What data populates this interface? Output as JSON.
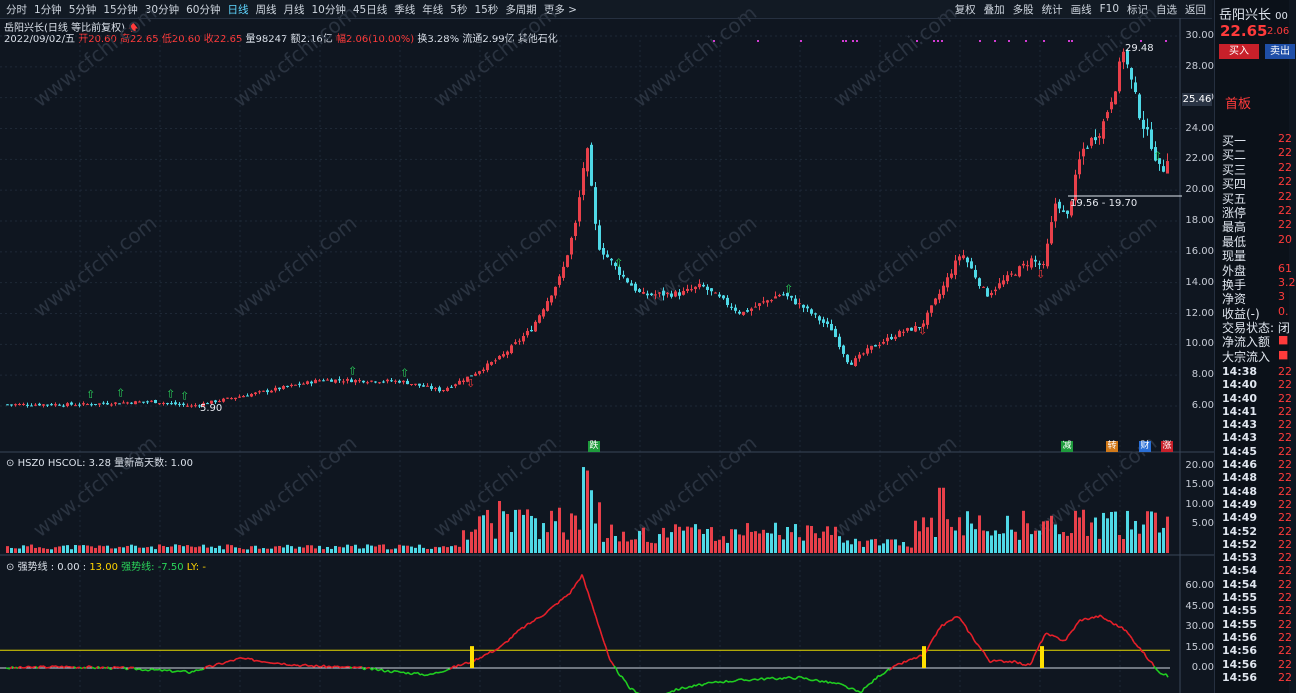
{
  "toolbar": {
    "left_items": [
      "分时",
      "1分钟",
      "5分钟",
      "15分钟",
      "30分钟",
      "60分钟",
      "日线",
      "周线",
      "月线",
      "10分钟",
      "45日线",
      "季线",
      "年线",
      "5秒",
      "15秒",
      "多周期",
      "更多 >"
    ],
    "active_index": 6,
    "right_items": [
      "复权",
      "叠加",
      "多股",
      "统计",
      "画线",
      "F10",
      "标记",
      "自选",
      "返回"
    ]
  },
  "header": {
    "stock_title": "岳阳兴长(日线 等比前复权)",
    "date": "2022/09/02/五",
    "open": "开20.60",
    "high": "高22.65",
    "low": "低20.60",
    "close": "收22.65",
    "volume": "量98247",
    "amount": "额2.16亿",
    "change": "幅2.06(10.00%)",
    "turnover": "换3.28%",
    "circulation": "流通2.99亿",
    "industry": "其他石化"
  },
  "price_axis": {
    "labels": [
      "30.00",
      "28.00",
      "26.00",
      "24.00",
      "22.00",
      "20.00",
      "18.00",
      "16.00",
      "14.00",
      "12.00",
      "10.00",
      "8.00",
      "6.00"
    ],
    "current_tag": "25.46",
    "annotations": {
      "high": "29.48",
      "low": "5.90",
      "range": "19.56 - 19.70"
    }
  },
  "volume_panel": {
    "title": "HSZ0  HSCOL: 3.28  量新高天数: 1.00",
    "axis": [
      "20.00",
      "15.00",
      "10.00",
      "5.00"
    ]
  },
  "indicator_panel": {
    "title_name": "强势线 : 0.00 :",
    "title_v1": "13.00",
    "title_v2": "强势线: -7.50",
    "title_v3": "LY: -",
    "axis": [
      "60.00",
      "45.00",
      "30.00",
      "15.00",
      "0.00"
    ]
  },
  "markers": [
    {
      "text": "跌",
      "color": "#1e9b3c"
    },
    {
      "text": "减",
      "color": "#1e9b3c"
    },
    {
      "text": "转",
      "color": "#d27a1a"
    },
    {
      "text": "财",
      "color": "#2a6fd6"
    },
    {
      "text": "涨",
      "color": "#c8202a"
    }
  ],
  "watermark": "www.cfchi.com",
  "quote_panel": {
    "title": "岳阳兴长",
    "code_suffix": "00",
    "price": "22.65",
    "change": "2.06",
    "buy_label": "买入",
    "sell_label": "卖出",
    "tag": "首板",
    "rows": [
      {
        "label": "买一",
        "value": "22"
      },
      {
        "label": "买二",
        "value": "22"
      },
      {
        "label": "买三",
        "value": "22"
      },
      {
        "label": "买四",
        "value": "22"
      },
      {
        "label": "买五",
        "value": "22"
      },
      {
        "label": "涨停",
        "value": "22"
      },
      {
        "label": "最高",
        "value": "22"
      },
      {
        "label": "最低",
        "value": "20"
      },
      {
        "label": "现量",
        "value": ""
      },
      {
        "label": "外盘",
        "value": "61"
      },
      {
        "label": "换手",
        "value": "3.2"
      },
      {
        "label": "净资",
        "value": "3"
      },
      {
        "label": "收益(-)",
        "value": "0."
      },
      {
        "label": "交易状态: 闭",
        "value": ""
      },
      {
        "label": "净流入额",
        "value": "■"
      },
      {
        "label": "大宗流入",
        "value": "■"
      }
    ],
    "ticks": [
      {
        "time": "14:38",
        "value": "22"
      },
      {
        "time": "14:40",
        "value": "22"
      },
      {
        "time": "14:40",
        "value": "22"
      },
      {
        "time": "14:41",
        "value": "22"
      },
      {
        "time": "14:43",
        "value": "22"
      },
      {
        "time": "14:43",
        "value": "22"
      },
      {
        "time": "14:45",
        "value": "22"
      },
      {
        "time": "14:46",
        "value": "22"
      },
      {
        "time": "14:48",
        "value": "22"
      },
      {
        "time": "14:48",
        "value": "22"
      },
      {
        "time": "14:49",
        "value": "22"
      },
      {
        "time": "14:49",
        "value": "22"
      },
      {
        "time": "14:52",
        "value": "22"
      },
      {
        "time": "14:52",
        "value": "22"
      },
      {
        "time": "14:53",
        "value": "22"
      },
      {
        "time": "14:54",
        "value": "22"
      },
      {
        "time": "14:54",
        "value": "22"
      },
      {
        "time": "14:55",
        "value": "22"
      },
      {
        "time": "14:55",
        "value": "22"
      },
      {
        "time": "14:55",
        "value": "22"
      },
      {
        "time": "14:56",
        "value": "22"
      },
      {
        "time": "14:56",
        "value": "22"
      },
      {
        "time": "14:56",
        "value": "22"
      },
      {
        "time": "14:56",
        "value": "22"
      }
    ]
  },
  "colors": {
    "up": "#e8404a",
    "down": "#4fd8e6",
    "bg": "#0f1620",
    "ma_up": "#e8202a",
    "ma_down": "#20d020",
    "yline": "#e6d800"
  }
}
